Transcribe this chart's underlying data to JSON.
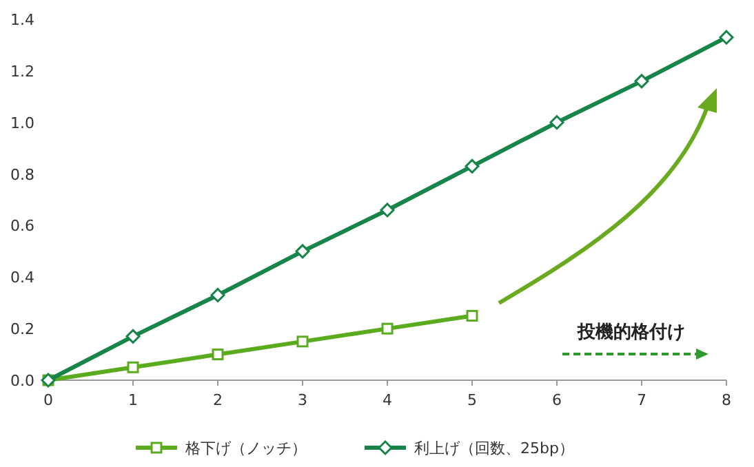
{
  "chart_data": {
    "type": "line",
    "x": [
      0,
      1,
      2,
      3,
      4,
      5,
      6,
      7,
      8
    ],
    "series": [
      {
        "name": "格下げ（ノッチ）",
        "color": "#5aab1e",
        "marker": "square",
        "x": [
          0,
          1,
          2,
          3,
          4,
          5
        ],
        "values": [
          0,
          0.05,
          0.1,
          0.15,
          0.2,
          0.25
        ]
      },
      {
        "name": "利上げ（回数、25bp）",
        "color": "#17844a",
        "marker": "diamond",
        "values": [
          0,
          0.17,
          0.33,
          0.5,
          0.66,
          0.83,
          1.0,
          1.16,
          1.33
        ]
      }
    ],
    "xlim": [
      0,
      8
    ],
    "xticks": [
      0,
      1,
      2,
      3,
      4,
      5,
      6,
      7,
      8
    ],
    "ylim": [
      0,
      1.4
    ],
    "yticks": [
      {
        "value": 0,
        "label": "0.0"
      },
      {
        "value": 0.2,
        "label": "0.2"
      },
      {
        "value": 0.4,
        "label": "0.4"
      },
      {
        "value": 0.6,
        "label": "0.6"
      },
      {
        "value": 0.8,
        "label": "0.8"
      },
      {
        "value": 1.0,
        "label": "1.0"
      },
      {
        "value": 1.2,
        "label": "1.2"
      },
      {
        "value": 1.4,
        "label": "1.4"
      }
    ],
    "grid": false,
    "legend": "bottom",
    "line_style": "solid",
    "annotations": [
      "投機的格付け"
    ]
  }
}
